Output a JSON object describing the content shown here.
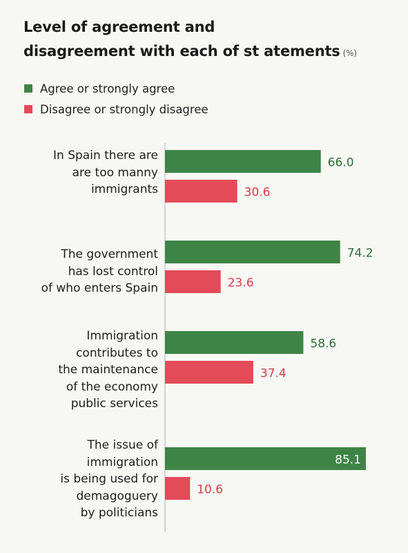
{
  "chart_data": {
    "type": "bar",
    "orientation": "horizontal",
    "title_line1": "Level of agreement and",
    "title_line2": "disagreement with each of st atements",
    "unit": "(%)",
    "categories": [
      [
        "In Spain there are",
        "are too manny",
        "immigrants"
      ],
      [
        "The government",
        "has lost control",
        "of who enters Spain"
      ],
      [
        "Immigration",
        "contributes to",
        "the maintenance",
        "of the economy",
        "public services"
      ],
      [
        "The issue of",
        "immigration",
        "is being used for",
        "demagoguery",
        "by politicians"
      ]
    ],
    "series": [
      {
        "name": "Agree or strongly agree",
        "color": "#3f8447",
        "values": [
          66.0,
          74.2,
          58.6,
          85.1
        ]
      },
      {
        "name": "Disagree or strongly disagree",
        "color": "#e24b57",
        "values": [
          30.6,
          23.6,
          37.4,
          10.6
        ]
      }
    ],
    "value_labels": [
      [
        "66.0",
        "74.2",
        "58.6",
        "85.1"
      ],
      [
        "30.6",
        "23.6",
        "37.4",
        "10.6"
      ]
    ],
    "label_colors": [
      "#2f6e3a",
      "#d63c4b"
    ],
    "xlim": [
      0,
      85.1
    ],
    "axis": "left baseline only",
    "legend_position": "top-left",
    "grid": false
  }
}
